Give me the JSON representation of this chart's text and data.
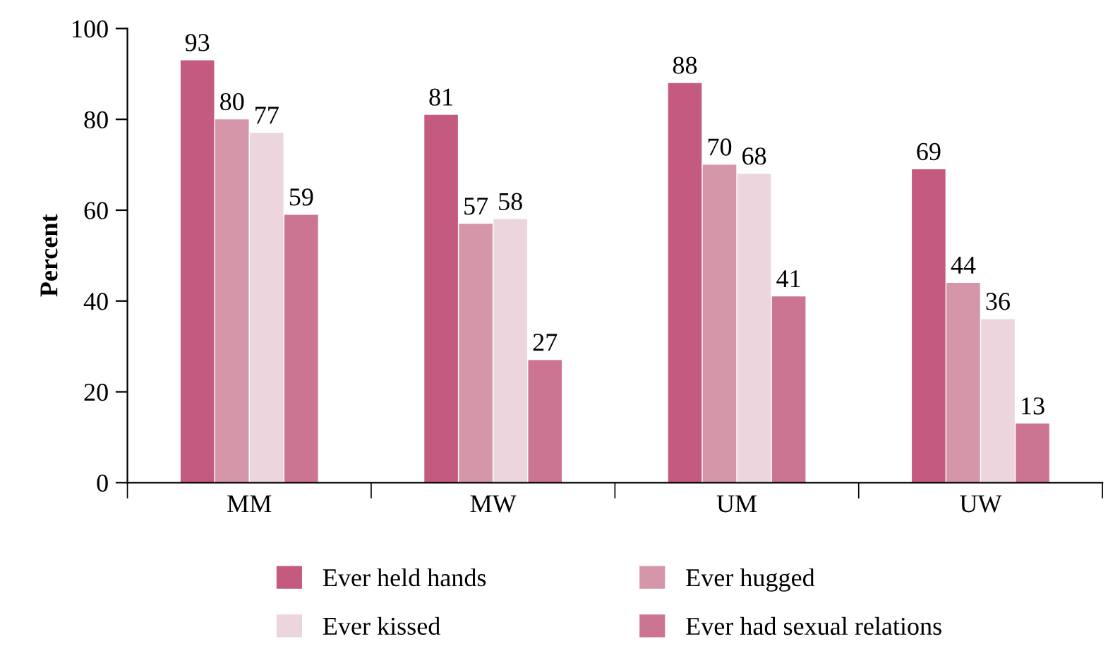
{
  "chart_data": {
    "type": "bar",
    "ylabel": "Percent",
    "categories": [
      "MM",
      "MW",
      "UM",
      "UW"
    ],
    "series": [
      {
        "name": "Ever held hands",
        "color": "#c45a80",
        "values": [
          93,
          81,
          88,
          69
        ]
      },
      {
        "name": "Ever hugged",
        "color": "#d596aa",
        "values": [
          80,
          57,
          70,
          44
        ]
      },
      {
        "name": "Ever kissed",
        "color": "#ecd5dc",
        "values": [
          77,
          58,
          68,
          36
        ]
      },
      {
        "name": "Ever had sexual relations",
        "color": "#cc7592",
        "values": [
          59,
          27,
          41,
          13
        ]
      }
    ],
    "ylim": [
      0,
      100
    ],
    "yticks": [
      0,
      20,
      40,
      60,
      80,
      100
    ],
    "data_labels": true,
    "grid": false,
    "legend": "bottom"
  }
}
